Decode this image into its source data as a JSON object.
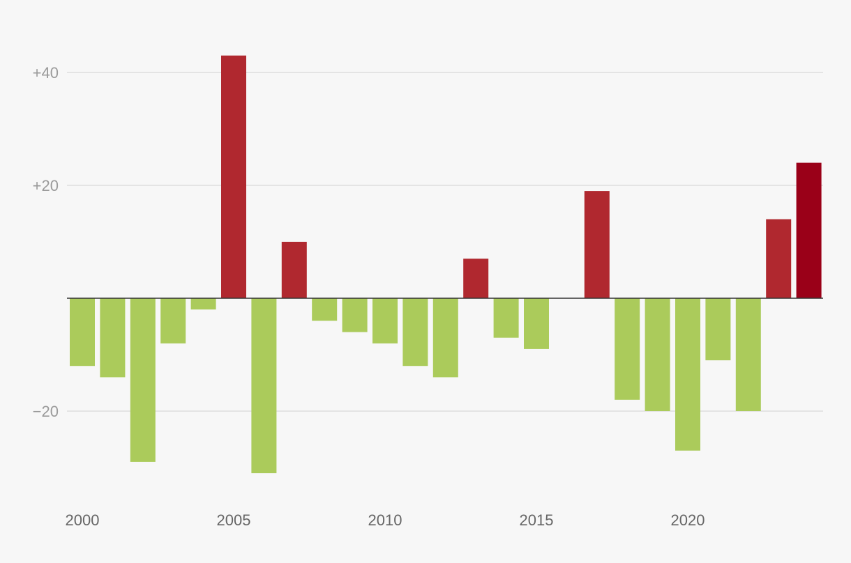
{
  "chart_data": {
    "type": "bar",
    "title": "",
    "xlabel": "",
    "ylabel": "",
    "x": [
      2000,
      2001,
      2002,
      2003,
      2004,
      2005,
      2006,
      2007,
      2008,
      2009,
      2010,
      2011,
      2012,
      2013,
      2014,
      2015,
      2016,
      2017,
      2018,
      2019,
      2020,
      2021,
      2022,
      2023,
      2024
    ],
    "values": [
      -12,
      -14,
      -29,
      -8,
      -2,
      43,
      -31,
      10,
      -4,
      -6,
      -8,
      -12,
      -14,
      7,
      -7,
      -9,
      0,
      19,
      -18,
      -20,
      -27,
      -11,
      -20,
      14,
      24
    ],
    "ylim": [
      -35,
      45
    ],
    "y_ticks": [
      40,
      20,
      -20
    ],
    "y_tick_labels": [
      "+40",
      "+20",
      "−20"
    ],
    "x_ticks": [
      2000,
      2005,
      2010,
      2015,
      2020
    ],
    "x_tick_labels": [
      "2000",
      "2005",
      "2010",
      "2015",
      "2020"
    ],
    "grid": true,
    "legend": "none",
    "colors": {
      "positive": "#b0282f",
      "negative": "#abcb5b",
      "highlight": "#9a0018",
      "grid": "#dddddd",
      "zero_line": "#333333",
      "background": "#f7f7f7"
    },
    "highlight_index": 24
  }
}
